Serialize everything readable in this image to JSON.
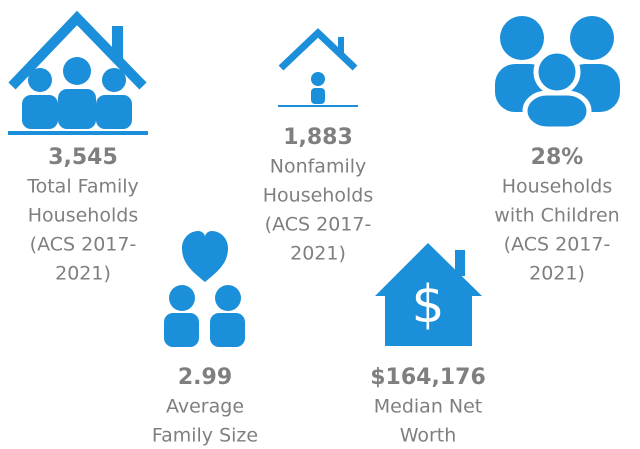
{
  "items": [
    {
      "value": "3,545",
      "label": [
        "Total Family",
        "Households",
        "(ACS 2017-",
        "2021)"
      ]
    },
    {
      "value": "1,883",
      "label": [
        "Nonfamily",
        "Households",
        "(ACS 2017-",
        "2021)"
      ]
    },
    {
      "value": "28%",
      "label": [
        "Households",
        "with Children",
        "(ACS 2017-",
        "2021)"
      ]
    },
    {
      "value": "2.99",
      "label": [
        "Average",
        "Family Size"
      ]
    },
    {
      "value": "$164,176",
      "label": [
        "Median Net",
        "Worth"
      ]
    }
  ]
}
